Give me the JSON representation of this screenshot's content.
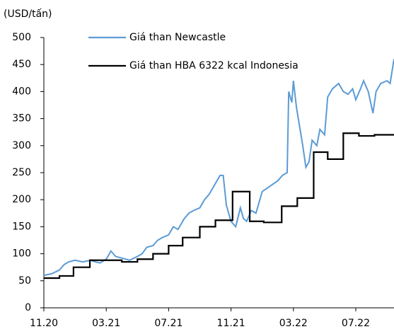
{
  "chart_data": {
    "type": "line",
    "y_label": "(USD/tấn)",
    "xlim": [
      0,
      22.45
    ],
    "xticks": [
      {
        "value": 0,
        "label": "11.20"
      },
      {
        "value": 4,
        "label": "03.21"
      },
      {
        "value": 8,
        "label": "07.21"
      },
      {
        "value": 12,
        "label": "11.21"
      },
      {
        "value": 16,
        "label": "03.22"
      },
      {
        "value": 20,
        "label": "07.22"
      }
    ],
    "ylim": [
      0,
      500
    ],
    "yticks": [
      0,
      50,
      100,
      150,
      200,
      250,
      300,
      350,
      400,
      450,
      500
    ],
    "grid": false,
    "legend": "top",
    "series": [
      {
        "name": "Giá than Newcastle",
        "color": "#5b9bd5",
        "step": false,
        "x": [
          0,
          0.5,
          1,
          1.3,
          1.6,
          2,
          2.5,
          3,
          3.3,
          3.6,
          4,
          4.3,
          4.6,
          5,
          5.5,
          6,
          6.3,
          6.6,
          7,
          7.3,
          7.6,
          8,
          8.3,
          8.6,
          9,
          9.3,
          9.6,
          10,
          10.3,
          10.6,
          11,
          11.3,
          11.5,
          11.7,
          12,
          12.3,
          12.6,
          12.8,
          13,
          13.3,
          13.6,
          14,
          14.5,
          15,
          15.3,
          15.6,
          15.7,
          15.9,
          16,
          16.2,
          16.6,
          16.8,
          17,
          17.2,
          17.5,
          17.7,
          18,
          18.2,
          18.5,
          18.9,
          19.2,
          19.5,
          19.8,
          20,
          20.3,
          20.5,
          20.8,
          21.1,
          21.3,
          21.6,
          22,
          22.2,
          22.45
        ],
        "values": [
          60,
          63,
          70,
          80,
          85,
          88,
          85,
          88,
          85,
          83,
          90,
          105,
          95,
          92,
          88,
          95,
          100,
          112,
          115,
          125,
          130,
          135,
          150,
          145,
          165,
          175,
          180,
          185,
          200,
          210,
          230,
          245,
          245,
          190,
          160,
          150,
          185,
          165,
          160,
          180,
          175,
          215,
          225,
          235,
          245,
          250,
          400,
          380,
          420,
          370,
          300,
          260,
          270,
          310,
          300,
          330,
          320,
          390,
          405,
          415,
          400,
          395,
          405,
          385,
          405,
          420,
          400,
          360,
          400,
          415,
          420,
          415,
          460
        ]
      },
      {
        "name": "Giá than HBA 6322 kcal Indonesia",
        "color": "#000000",
        "step": true,
        "x": [
          0,
          1,
          1.9,
          2.95,
          5,
          6,
          7,
          8,
          8.9,
          10,
          11,
          12.1,
          13.2,
          14.1,
          15.25,
          16.25,
          17.3,
          18.2,
          19.2,
          20.2,
          21.2,
          22.45
        ],
        "values": [
          55,
          59,
          75,
          88,
          85,
          90,
          100,
          115,
          130,
          150,
          162,
          215,
          160,
          158,
          188,
          203,
          288,
          275,
          323,
          318,
          320,
          320
        ]
      }
    ]
  }
}
